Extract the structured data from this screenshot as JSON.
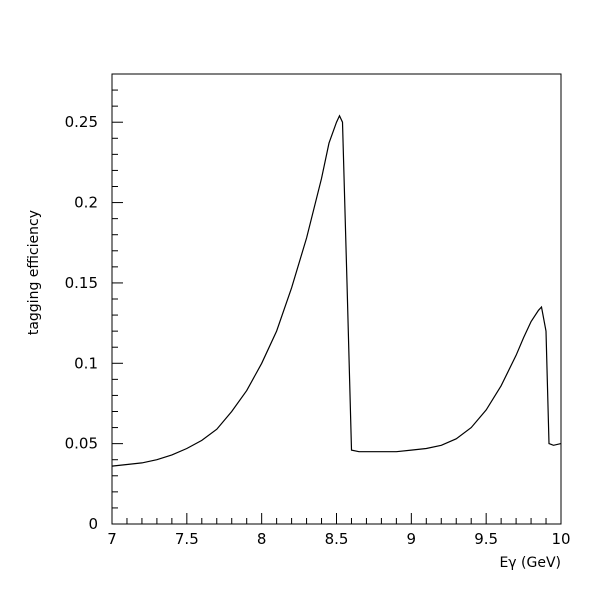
{
  "chart_data": {
    "type": "line",
    "title": "",
    "xlabel": "Eγ (GeV)",
    "ylabel": "tagging efficiency",
    "xlim": [
      7,
      10
    ],
    "ylim": [
      0,
      0.28
    ],
    "grid": false,
    "x_ticks": [
      7,
      7.5,
      8,
      8.5,
      9,
      9.5,
      10
    ],
    "x_tick_labels": [
      "7",
      "7.5",
      "8",
      "8.5",
      "9",
      "9.5",
      "10"
    ],
    "y_ticks": [
      0,
      0.05,
      0.1,
      0.15,
      0.2,
      0.25
    ],
    "y_tick_labels": [
      "0",
      "0.05",
      "0.1",
      "0.15",
      "0.2",
      "0.25"
    ],
    "series": [
      {
        "x": [
          7.0,
          7.1,
          7.2,
          7.3,
          7.4,
          7.5,
          7.6,
          7.7,
          7.8,
          7.9,
          8.0,
          8.1,
          8.2,
          8.3,
          8.4,
          8.45,
          8.5,
          8.52,
          8.54,
          8.57,
          8.6,
          8.65,
          8.7,
          8.8,
          8.9,
          9.0,
          9.1,
          9.2,
          9.3,
          9.4,
          9.5,
          9.6,
          9.7,
          9.75,
          9.8,
          9.85,
          9.87,
          9.9,
          9.92,
          9.95,
          10.0
        ],
        "y": [
          0.036,
          0.037,
          0.038,
          0.04,
          0.043,
          0.047,
          0.052,
          0.059,
          0.07,
          0.083,
          0.1,
          0.12,
          0.147,
          0.178,
          0.215,
          0.237,
          0.25,
          0.254,
          0.25,
          0.15,
          0.046,
          0.045,
          0.045,
          0.045,
          0.045,
          0.046,
          0.047,
          0.049,
          0.053,
          0.06,
          0.071,
          0.086,
          0.105,
          0.116,
          0.126,
          0.133,
          0.135,
          0.12,
          0.05,
          0.049,
          0.05
        ]
      }
    ]
  }
}
